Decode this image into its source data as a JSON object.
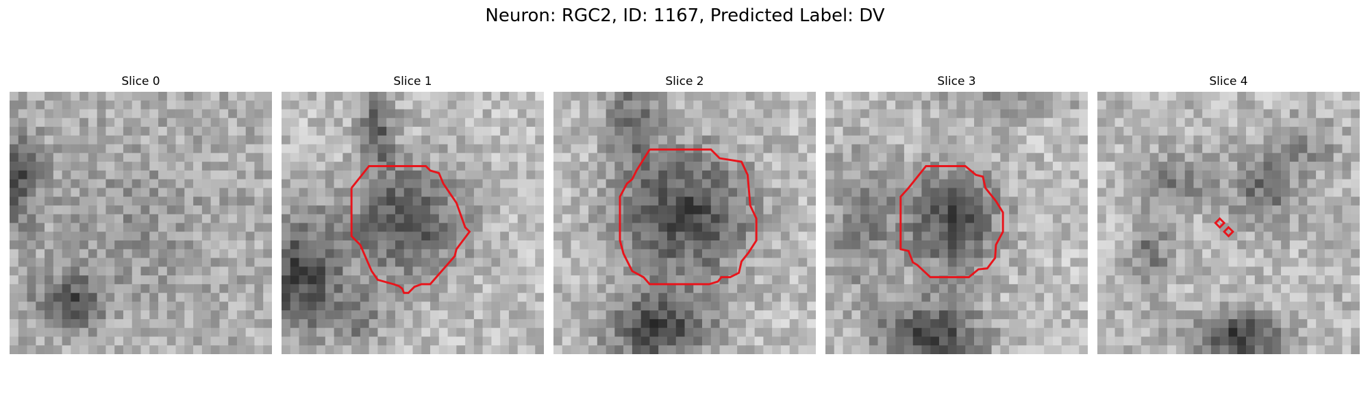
{
  "figure": {
    "title": "Neuron: RGC2, ID: 1167, Predicted Label: DV"
  },
  "slices": [
    {
      "title": "Slice 0",
      "contour": "none"
    },
    {
      "title": "Slice 1",
      "contour": "cell-outline"
    },
    {
      "title": "Slice 2",
      "contour": "cell-outline"
    },
    {
      "title": "Slice 3",
      "contour": "cell-outline"
    },
    {
      "title": "Slice 4",
      "contour": "two-small-diamonds"
    }
  ],
  "colors": {
    "contour": "#e8141b",
    "colormap": "grayscale"
  }
}
